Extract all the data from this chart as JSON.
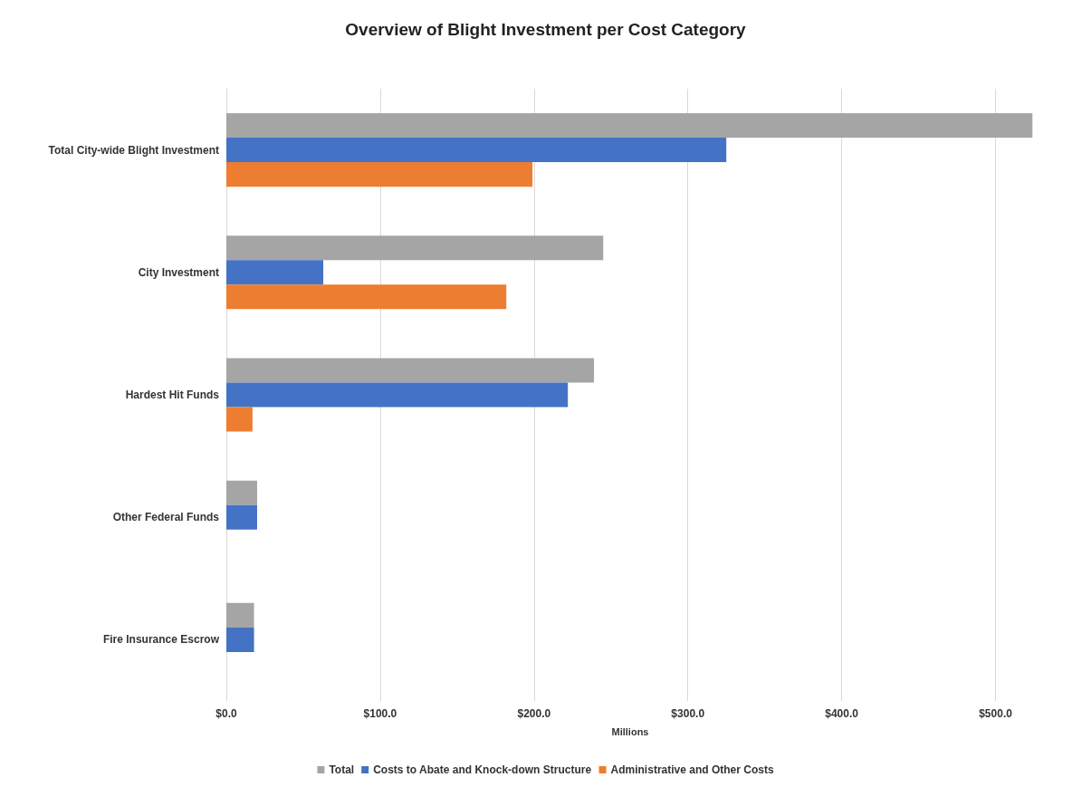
{
  "chart_data": {
    "type": "bar",
    "orientation": "horizontal",
    "title": "Overview of Blight Investment per Cost Category",
    "xlabel": "Millions",
    "categories": [
      "Total City-wide Blight Investment",
      "City Investment",
      "Hardest Hit Funds",
      "Other Federal Funds",
      "Fire Insurance Escrow"
    ],
    "series": [
      {
        "name": "Total",
        "color": "#a5a5a5",
        "values": [
          524,
          245,
          239,
          20,
          18
        ]
      },
      {
        "name": "Costs to Abate and Knock-down Structure",
        "color": "#4472c4",
        "values": [
          325,
          63,
          222,
          20,
          18
        ]
      },
      {
        "name": "Administrative and Other Costs",
        "color": "#ed7d31",
        "values": [
          199,
          182,
          17,
          null,
          null
        ]
      }
    ],
    "xlim": [
      0,
      525
    ],
    "xticks": [
      {
        "value": 0,
        "label": "$0.0"
      },
      {
        "value": 100,
        "label": "$100.0"
      },
      {
        "value": 200,
        "label": "$200.0"
      },
      {
        "value": 300,
        "label": "$300.0"
      },
      {
        "value": 400,
        "label": "$400.0"
      },
      {
        "value": 500,
        "label": "$500.0"
      }
    ],
    "grid": "x",
    "legend": "bottom"
  }
}
